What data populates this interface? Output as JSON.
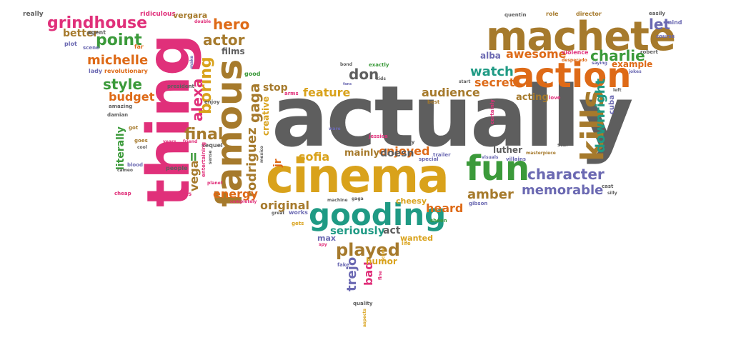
{
  "colors": {
    "gray": "#5e5e5e",
    "pink": "#e0307a",
    "gold": "#d9a21b",
    "brown": "#a67a2c",
    "green": "#3b9a3a",
    "orange": "#de6a17",
    "teal": "#1f9a84",
    "purple": "#6b69b2",
    "lightgreen": "#7bb83a"
  },
  "words": [
    {
      "text": "actually",
      "color": "gray"
    },
    {
      "text": "thing",
      "color": "pink"
    },
    {
      "text": "cinema",
      "color": "gold"
    },
    {
      "text": "machete",
      "color": "brown"
    },
    {
      "text": "famous",
      "color": "brown"
    },
    {
      "text": "gooding",
      "color": "teal"
    },
    {
      "text": "action",
      "color": "orange"
    },
    {
      "text": "fun",
      "color": "green"
    },
    {
      "text": "kills",
      "color": "brown"
    },
    {
      "text": "grindhouse",
      "color": "pink"
    },
    {
      "text": "point",
      "color": "green"
    },
    {
      "text": "michelle",
      "color": "orange"
    },
    {
      "text": "hero",
      "color": "orange"
    },
    {
      "text": "actor",
      "color": "brown"
    },
    {
      "text": "boring",
      "color": "gold"
    },
    {
      "text": "style",
      "color": "green"
    },
    {
      "text": "budget",
      "color": "orange"
    },
    {
      "text": "final",
      "color": "brown"
    },
    {
      "text": "rodriguez",
      "color": "brown"
    },
    {
      "text": "gaga",
      "color": "brown"
    },
    {
      "text": "alexa",
      "color": "pink"
    },
    {
      "text": "vega",
      "color": "brown"
    },
    {
      "text": "energy",
      "color": "orange"
    },
    {
      "text": "original",
      "color": "brown"
    },
    {
      "text": "played",
      "color": "brown"
    },
    {
      "text": "feature",
      "color": "gold"
    },
    {
      "text": "audience",
      "color": "brown"
    },
    {
      "text": "enjoyed",
      "color": "orange"
    },
    {
      "text": "sofia",
      "color": "gold"
    },
    {
      "text": "character",
      "color": "purple"
    },
    {
      "text": "memorable",
      "color": "purple"
    },
    {
      "text": "amber",
      "color": "brown"
    },
    {
      "text": "heard",
      "color": "orange"
    },
    {
      "text": "seriously",
      "color": "teal"
    },
    {
      "text": "watch",
      "color": "teal"
    },
    {
      "text": "secret",
      "color": "orange"
    },
    {
      "text": "awesome",
      "color": "orange"
    },
    {
      "text": "charlie",
      "color": "green"
    },
    {
      "text": "let",
      "color": "purple"
    },
    {
      "text": "downright",
      "color": "teal"
    },
    {
      "text": "example",
      "color": "orange"
    },
    {
      "text": "don",
      "color": "gray"
    },
    {
      "text": "doesn",
      "color": "gray"
    },
    {
      "text": "mainly",
      "color": "brown"
    },
    {
      "text": "stop",
      "color": "brown"
    },
    {
      "text": "trejo",
      "color": "purple"
    },
    {
      "text": "bad",
      "color": "pink"
    },
    {
      "text": "humor",
      "color": "gold"
    },
    {
      "text": "act",
      "color": "gray"
    },
    {
      "text": "acting",
      "color": "brown"
    },
    {
      "text": "literally",
      "color": "green"
    },
    {
      "text": "films",
      "color": "gray"
    },
    {
      "text": "better",
      "color": "brown"
    },
    {
      "text": "luther",
      "color": "gray"
    },
    {
      "text": "alba",
      "color": "purple"
    },
    {
      "text": "creative",
      "color": "gold"
    },
    {
      "text": "jr",
      "color": "orange"
    },
    {
      "text": "cheesy",
      "color": "gold"
    },
    {
      "text": "max",
      "color": "purple"
    },
    {
      "text": "wanted",
      "color": "gold"
    },
    {
      "text": "ll",
      "color": "green"
    },
    {
      "text": "really",
      "color": "gray"
    },
    {
      "text": "ridiculous",
      "color": "pink"
    },
    {
      "text": "vergara",
      "color": "brown"
    },
    {
      "text": "agent",
      "color": "gray"
    },
    {
      "text": "plot",
      "color": "purple"
    },
    {
      "text": "scene",
      "color": "purple"
    },
    {
      "text": "far",
      "color": "orange"
    },
    {
      "text": "lady",
      "color": "purple"
    },
    {
      "text": "revolutionary",
      "color": "orange"
    },
    {
      "text": "quentin",
      "color": "gray"
    },
    {
      "text": "role",
      "color": "brown"
    },
    {
      "text": "director",
      "color": "brown"
    },
    {
      "text": "easily",
      "color": "gray"
    },
    {
      "text": "mind",
      "color": "purple"
    },
    {
      "text": "course",
      "color": "purple"
    },
    {
      "text": "violence",
      "color": "pink"
    },
    {
      "text": "robert",
      "color": "gray"
    },
    {
      "text": "saying",
      "color": "purple"
    },
    {
      "text": "desperado",
      "color": "orange"
    },
    {
      "text": "jokes",
      "color": "purple"
    },
    {
      "text": "left",
      "color": "gray"
    },
    {
      "text": "love",
      "color": "pink"
    },
    {
      "text": "cuba",
      "color": "purple"
    },
    {
      "text": "star",
      "color": "gray"
    },
    {
      "text": "masterpiece",
      "color": "brown"
    },
    {
      "text": "cast",
      "color": "gray"
    },
    {
      "text": "silly",
      "color": "gray"
    },
    {
      "text": "villains",
      "color": "purple"
    },
    {
      "text": "visuals",
      "color": "purple"
    },
    {
      "text": "certainly",
      "color": "pink"
    },
    {
      "text": "special",
      "color": "purple"
    },
    {
      "text": "danny",
      "color": "gray"
    },
    {
      "text": "jessica",
      "color": "pink"
    },
    {
      "text": "trailer",
      "color": "purple"
    },
    {
      "text": "gibson",
      "color": "purple"
    },
    {
      "text": "sheen",
      "color": "green"
    },
    {
      "text": "good",
      "color": "green"
    },
    {
      "text": "kids",
      "color": "gray"
    },
    {
      "text": "exactly",
      "color": "green"
    },
    {
      "text": "bond",
      "color": "gray"
    },
    {
      "text": "fans",
      "color": "purple"
    },
    {
      "text": "best",
      "color": "brown"
    },
    {
      "text": "ware",
      "color": "purple"
    },
    {
      "text": "arms",
      "color": "pink"
    },
    {
      "text": "start",
      "color": "gray"
    },
    {
      "text": "make",
      "color": "purple"
    },
    {
      "text": "president",
      "color": "gray"
    },
    {
      "text": "enjoy",
      "color": "gray"
    },
    {
      "text": "amazing",
      "color": "gray"
    },
    {
      "text": "damian",
      "color": "gray"
    },
    {
      "text": "got",
      "color": "brown"
    },
    {
      "text": "goes",
      "color": "brown"
    },
    {
      "text": "cool",
      "color": "gray"
    },
    {
      "text": "years",
      "color": "pink"
    },
    {
      "text": "friend",
      "color": "pink"
    },
    {
      "text": "sequel",
      "color": "gray"
    },
    {
      "text": "blood",
      "color": "purple"
    },
    {
      "text": "cameo",
      "color": "gray"
    },
    {
      "text": "people",
      "color": "gray"
    },
    {
      "text": "cheap",
      "color": "pink"
    },
    {
      "text": "banderas",
      "color": "pink"
    },
    {
      "text": "entertaining",
      "color": "pink"
    },
    {
      "text": "sense",
      "color": "gray"
    },
    {
      "text": "planet",
      "color": "pink"
    },
    {
      "text": "completely",
      "color": "pink"
    },
    {
      "text": "great",
      "color": "gray"
    },
    {
      "text": "works",
      "color": "purple"
    },
    {
      "text": "gets",
      "color": "gold"
    },
    {
      "text": "machine",
      "color": "gray"
    },
    {
      "text": "gaga",
      "color": "gray"
    },
    {
      "text": "spy",
      "color": "pink"
    },
    {
      "text": "fake",
      "color": "purple"
    },
    {
      "text": "life",
      "color": "gold"
    },
    {
      "text": "score",
      "color": "gold"
    },
    {
      "text": "fine",
      "color": "pink"
    },
    {
      "text": "quality",
      "color": "gray"
    },
    {
      "text": "aspects",
      "color": "gold"
    },
    {
      "text": "mexico",
      "color": "gray"
    },
    {
      "text": "double",
      "color": "pink"
    }
  ]
}
